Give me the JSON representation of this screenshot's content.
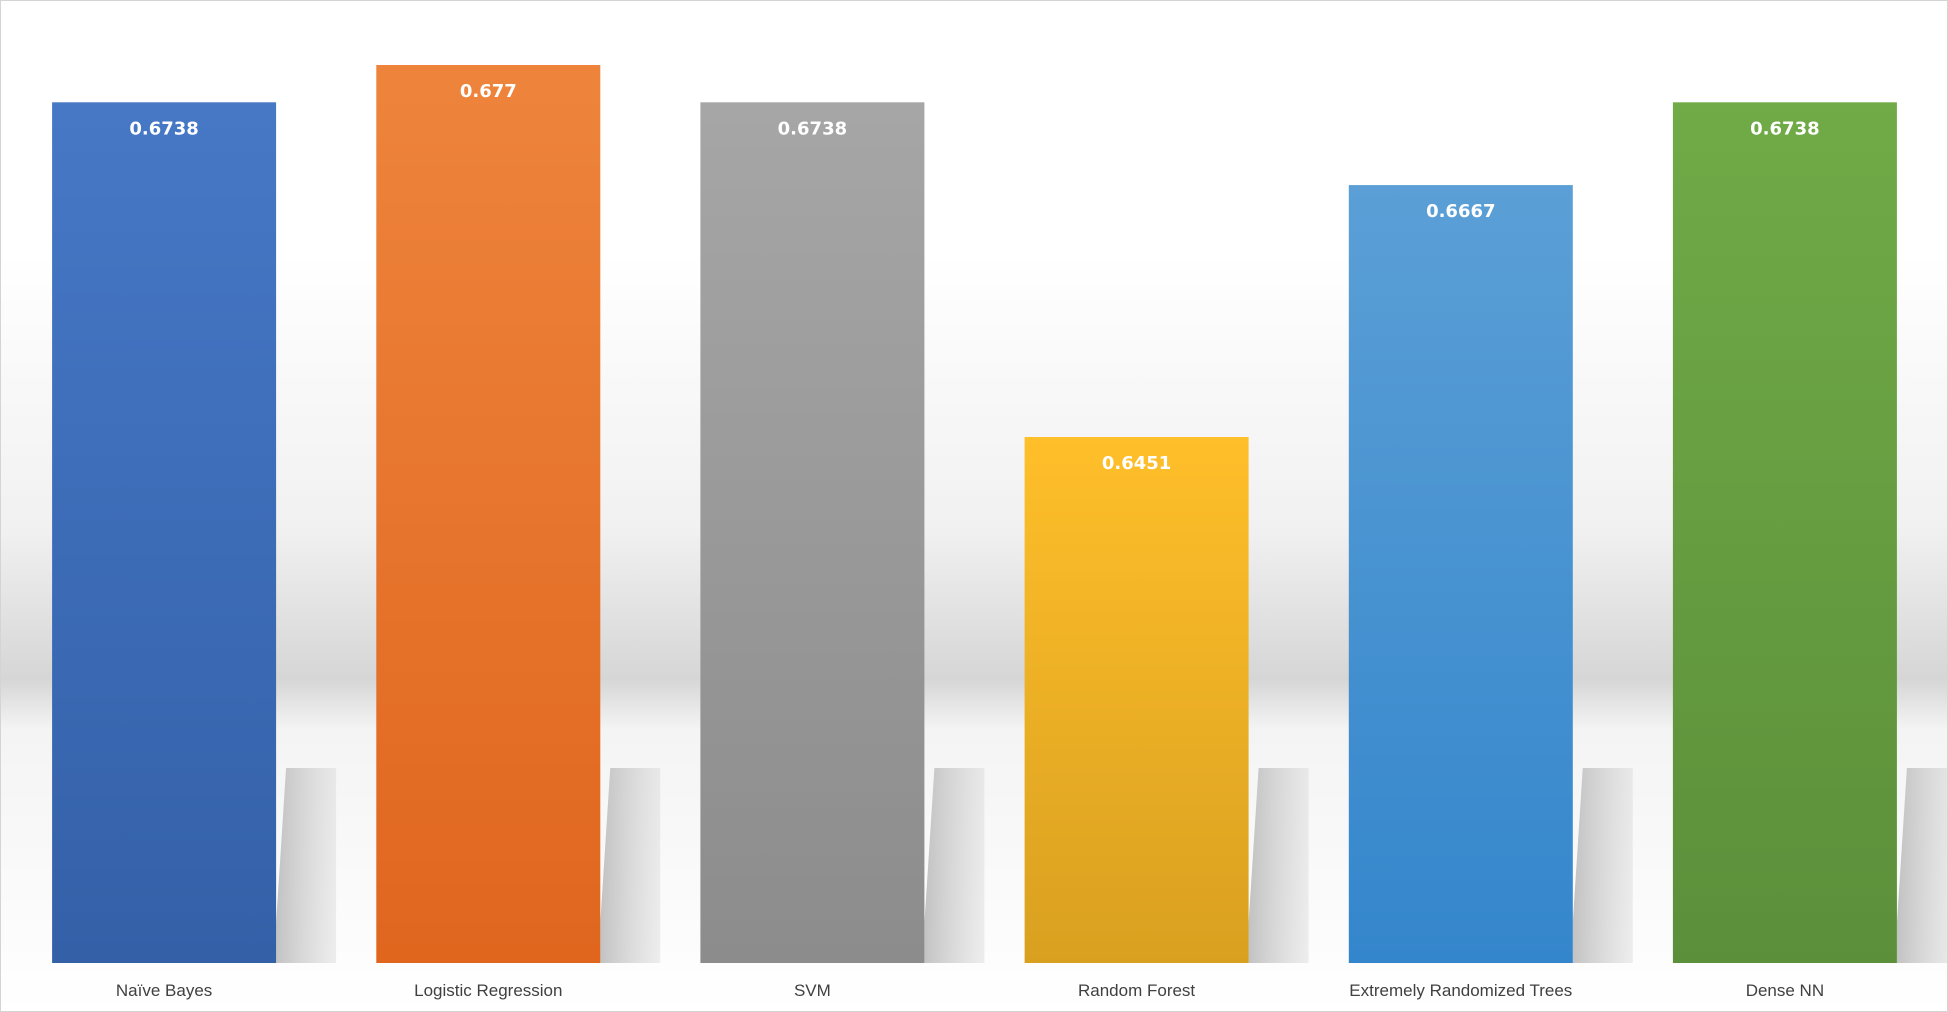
{
  "chart_data": {
    "type": "bar",
    "title": "",
    "xlabel": "",
    "ylabel": "",
    "categories": [
      "Naïve Bayes",
      "Logistic Regression",
      "SVM",
      "Random Forest",
      "Extremely Randomized Trees",
      "Dense NN"
    ],
    "values": [
      0.6738,
      0.677,
      0.6738,
      0.6451,
      0.6667,
      0.6738
    ],
    "value_labels": [
      "0.6738",
      "0.677",
      "0.6738",
      "0.6451",
      "0.6667",
      "0.6738"
    ],
    "ylim": [
      0.6,
      0.68
    ],
    "grid": false,
    "legend": "none",
    "bar_colors": [
      [
        "#4678c6",
        "#3460a8"
      ],
      [
        "#ee843c",
        "#e0661e"
      ],
      [
        "#a6a6a6",
        "#8c8c8c"
      ],
      [
        "#ffbf2a",
        "#d9a020"
      ],
      [
        "#5b9fd6",
        "#3486cc"
      ],
      [
        "#70ab47",
        "#5c8f3a"
      ]
    ],
    "value_label_color": "#ffffff",
    "category_label_color": "#404040"
  }
}
